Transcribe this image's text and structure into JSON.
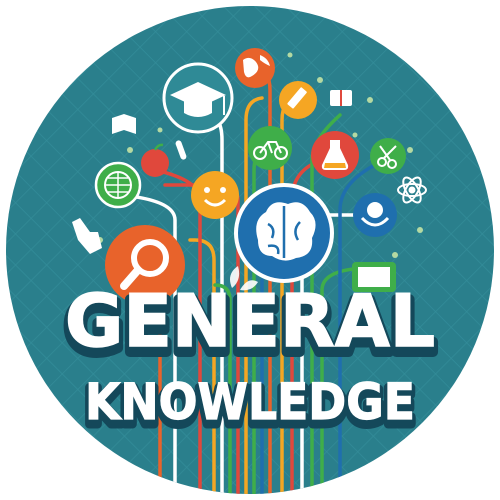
{
  "badge": {
    "title_line1": "GENERAL",
    "title_line2": "KNOWLEDGE",
    "colors": {
      "background": "#2a7f8c",
      "dark_teal": "#1f6472",
      "orange": "#e8632b",
      "amber": "#f5a623",
      "green": "#3fae49",
      "red": "#e0483c",
      "blue": "#1f6fae",
      "white": "#ffffff",
      "text_shadow": "#14485a"
    },
    "icons": [
      "graduation-cap-icon",
      "globe-icon",
      "pencil-icon",
      "book-icon",
      "bicycle-icon",
      "flask-icon",
      "scissors-icon",
      "atom-icon",
      "brain-icon",
      "smiley-icon",
      "world-icon",
      "apple-icon",
      "magnifier-icon",
      "hand-cursor-icon",
      "earth-in-hands-icon",
      "monitor-icon",
      "test-tube-icon"
    ]
  }
}
